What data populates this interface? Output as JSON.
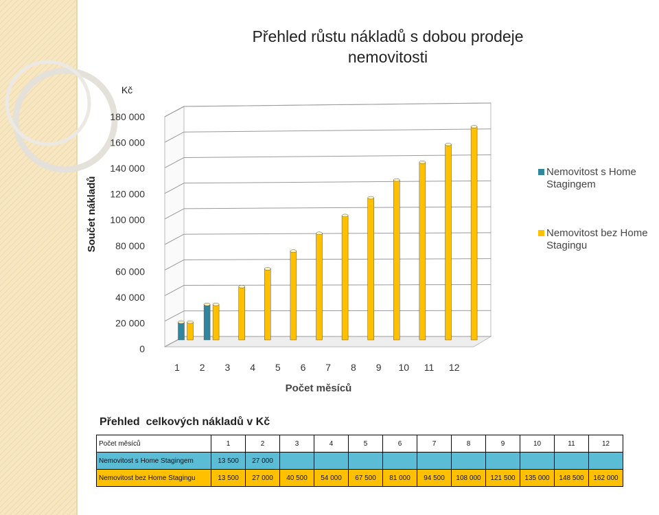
{
  "chart_data": {
    "type": "bar3d",
    "title": "Přehled růstu nákladů s dobou prodeje nemovitosti",
    "y_unit": "Kč",
    "y_label": "Součet nákladů",
    "x_label": "Počet měsíců",
    "table_title": "Přehled  celkových nákladů v Kč",
    "categories": [
      "1",
      "2",
      "3",
      "4",
      "5",
      "6",
      "7",
      "8",
      "9",
      "10",
      "11",
      "12"
    ],
    "series": [
      {
        "name": "Nemovitost s Home Stagingem",
        "color": "#31859c",
        "values": [
          13500,
          27000,
          null,
          null,
          null,
          null,
          null,
          null,
          null,
          null,
          null,
          null
        ],
        "value_labels": [
          "13 500",
          "27 000",
          null,
          null,
          null,
          null,
          null,
          null,
          null,
          null,
          null,
          null
        ]
      },
      {
        "name": "Nemovitost bez Home Stagingu",
        "color": "#ffc000",
        "values": [
          13500,
          27000,
          40500,
          54000,
          67500,
          81000,
          94500,
          108000,
          121500,
          135000,
          148500,
          162000
        ],
        "value_labels": [
          "13 500",
          "27 000",
          "40 500",
          "54 000",
          "67 500",
          "81 000",
          "94 500",
          "108 000",
          "121 500",
          "135 000",
          "148 500",
          "162 000"
        ]
      }
    ],
    "ylim": [
      0,
      180000
    ],
    "yticks": [
      0,
      {
        "value": 20000,
        "label": "20 000"
      },
      {
        "value": 40000,
        "label": "40 000"
      },
      {
        "value": 60000,
        "label": "60 000"
      },
      {
        "value": 80000,
        "label": "80 000"
      },
      {
        "value": 100000,
        "label": "100 000"
      },
      {
        "value": 120000,
        "label": "120 000"
      },
      {
        "value": 140000,
        "label": "140 000"
      },
      {
        "value": 160000,
        "label": "160 000"
      },
      {
        "value": 180000,
        "label": "180 000"
      }
    ],
    "grid": true,
    "legend": "right"
  }
}
